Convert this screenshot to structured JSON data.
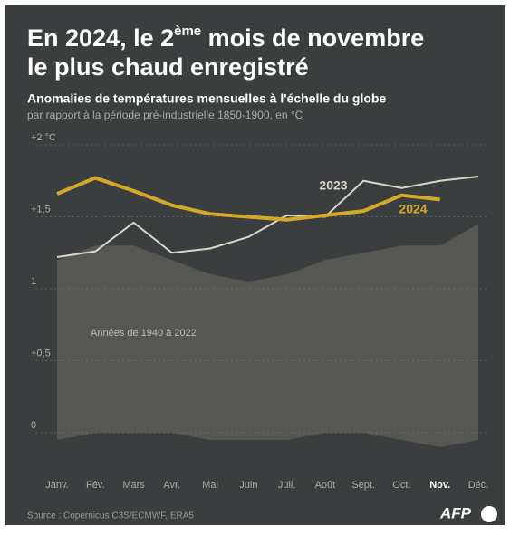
{
  "chart_data": {
    "type": "line",
    "title": {
      "line1_pre": "En 2024, le 2",
      "sup": "ème",
      "line1_post": " mois de novembre",
      "line2": "le plus chaud enregistré"
    },
    "subtitle": "Anomalies de températures mensuelles à l'échelle du globe",
    "subtitle2": "par rapport à la période pré-industrielle 1850-1900, en °C",
    "categories": [
      "Janv.",
      "Fév.",
      "Mars",
      "Avr.",
      "Mai",
      "Juin",
      "Juil.",
      "Août",
      "Sept.",
      "Oct.",
      "Nov.",
      "Déc."
    ],
    "highlight_category": 10,
    "series": [
      {
        "name": "2023",
        "color": "#d9d5c7",
        "values": [
          1.22,
          1.26,
          1.46,
          1.25,
          1.28,
          1.36,
          1.51,
          1.5,
          1.75,
          1.7,
          1.75,
          1.78
        ]
      },
      {
        "name": "2024",
        "color": "#d4a92a",
        "values": [
          1.66,
          1.77,
          1.68,
          1.58,
          1.52,
          1.5,
          1.48,
          1.51,
          1.54,
          1.65,
          1.62,
          null
        ]
      }
    ],
    "background": {
      "label": "Années de 1940 à 2022",
      "color": "#8a8776",
      "low": [
        -0.05,
        0.0,
        0.0,
        0.0,
        -0.05,
        -0.05,
        -0.05,
        0.0,
        0.0,
        -0.05,
        -0.1,
        -0.05
      ],
      "high": [
        1.2,
        1.3,
        1.3,
        1.2,
        1.1,
        1.05,
        1.1,
        1.2,
        1.25,
        1.3,
        1.3,
        1.45
      ]
    },
    "ylim": [
      0,
      2
    ],
    "yticks": [
      {
        "value": 0,
        "label": "0"
      },
      {
        "value": 0.5,
        "label": "+0,5"
      },
      {
        "value": 1,
        "label": "1"
      },
      {
        "value": 1.5,
        "label": "+1,5"
      },
      {
        "value": 2,
        "label": "+2 °C"
      }
    ],
    "grid": true,
    "source": "Source : Copernicus C3S/ECMWF, ERA5",
    "logo": "AFP"
  }
}
